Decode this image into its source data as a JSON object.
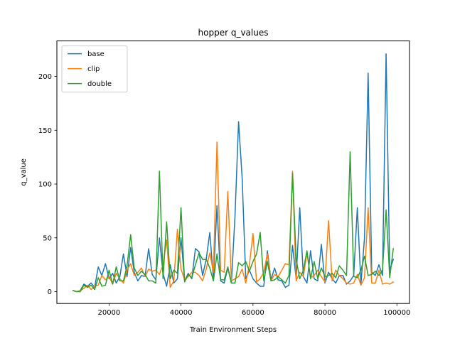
{
  "chart_data": {
    "type": "line",
    "title": "hopper q_values",
    "xlabel": "Train Environment Steps",
    "ylabel": "q_value",
    "xlim": [
      5500,
      103500
    ],
    "ylim": [
      -11,
      233
    ],
    "x_ticks": [
      20000,
      40000,
      60000,
      80000,
      100000
    ],
    "x_tick_labels": [
      "20000",
      "40000",
      "60000",
      "80000",
      "100000"
    ],
    "y_ticks": [
      0,
      50,
      100,
      150,
      200
    ],
    "y_tick_labels": [
      "0",
      "50",
      "100",
      "150",
      "200"
    ],
    "legend_position": "top-left",
    "grid": false,
    "x": [
      10000,
      11000,
      12000,
      13000,
      14000,
      15000,
      16000,
      17000,
      18000,
      19000,
      20000,
      21000,
      22000,
      23000,
      24000,
      25000,
      26000,
      27000,
      28000,
      29000,
      30000,
      31000,
      32000,
      33000,
      34000,
      35000,
      36000,
      37000,
      38000,
      39000,
      40000,
      41000,
      42000,
      43000,
      44000,
      45000,
      46000,
      47000,
      48000,
      49000,
      50000,
      51000,
      52000,
      53000,
      54000,
      55000,
      56000,
      57000,
      58000,
      59000,
      60000,
      61000,
      62000,
      63000,
      64000,
      65000,
      66000,
      67000,
      68000,
      69000,
      70000,
      71000,
      72000,
      73000,
      74000,
      75000,
      76000,
      77000,
      78000,
      79000,
      80000,
      81000,
      82000,
      83000,
      84000,
      85000,
      86000,
      87000,
      88000,
      89000,
      90000,
      91000,
      92000,
      93000,
      94000,
      95000,
      96000,
      97000,
      98000,
      99000
    ],
    "series": [
      {
        "name": "base",
        "color": "#1f77b4",
        "values": [
          1,
          0,
          1,
          7,
          5,
          8,
          4,
          23,
          15,
          26,
          12,
          17,
          8,
          14,
          35,
          14,
          41,
          18,
          10,
          15,
          14,
          40,
          16,
          11,
          50,
          17,
          5,
          25,
          8,
          12,
          50,
          10,
          17,
          12,
          40,
          37,
          15,
          30,
          55,
          12,
          80,
          10,
          8,
          22,
          8,
          70,
          158,
          105,
          12,
          20,
          12,
          8,
          5,
          5,
          38,
          11,
          22,
          11,
          10,
          4,
          6,
          43,
          12,
          78,
          14,
          8,
          38,
          12,
          10,
          44,
          8,
          18,
          12,
          8,
          15,
          15,
          7,
          10,
          15,
          78,
          7,
          50,
          203,
          18,
          15,
          25,
          15,
          221,
          20,
          30
        ]
      },
      {
        "name": "clip",
        "color": "#ff7f0e",
        "values": [
          1,
          0,
          1,
          3,
          6,
          2,
          5,
          6,
          15,
          11,
          14,
          7,
          17,
          12,
          8,
          20,
          26,
          15,
          18,
          22,
          14,
          21,
          19,
          20,
          16,
          25,
          48,
          4,
          10,
          58,
          21,
          11,
          14,
          18,
          18,
          15,
          10,
          21,
          36,
          18,
          139,
          20,
          18,
          93,
          10,
          12,
          14,
          21,
          8,
          25,
          54,
          9,
          12,
          18,
          35,
          10,
          16,
          14,
          20,
          26,
          25,
          112,
          10,
          18,
          14,
          36,
          13,
          15,
          20,
          14,
          9,
          66,
          10,
          20,
          15,
          12,
          8,
          7,
          8,
          16,
          6,
          13,
          78,
          8,
          8,
          20,
          7,
          8,
          7,
          9
        ]
      },
      {
        "name": "double",
        "color": "#2ca02c",
        "values": [
          1,
          0,
          0,
          6,
          4,
          6,
          2,
          13,
          5,
          6,
          20,
          7,
          23,
          10,
          10,
          24,
          53,
          22,
          15,
          19,
          16,
          10,
          10,
          8,
          112,
          12,
          65,
          12,
          20,
          17,
          78,
          9,
          16,
          13,
          25,
          36,
          30,
          30,
          22,
          10,
          35,
          11,
          11,
          23,
          8,
          8,
          27,
          24,
          28,
          19,
          28,
          35,
          55,
          10,
          28,
          10,
          11,
          14,
          11,
          8,
          15,
          110,
          30,
          12,
          20,
          38,
          12,
          28,
          12,
          22,
          14,
          15,
          17,
          13,
          24,
          20,
          15,
          130,
          14,
          13,
          20,
          33,
          15,
          16,
          19,
          15,
          20,
          76,
          13,
          40
        ]
      }
    ]
  }
}
